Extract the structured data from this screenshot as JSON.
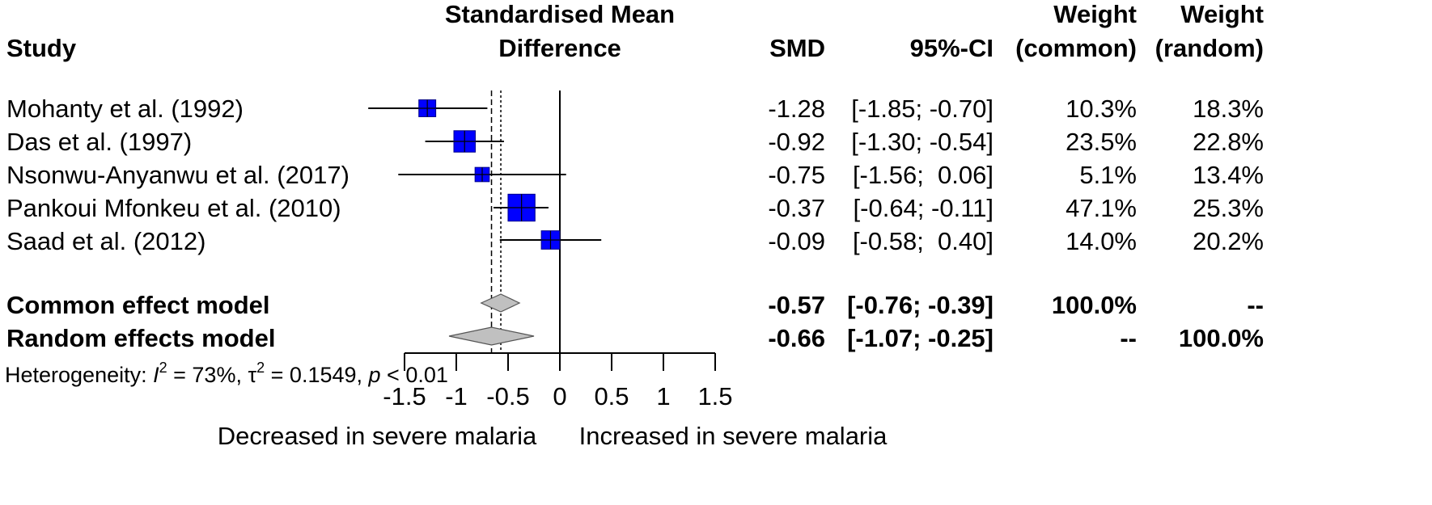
{
  "chart_data": {
    "type": "forest",
    "title": "Standardised Mean Difference",
    "headers": {
      "study": "Study",
      "effect_line1": "Standardised Mean",
      "effect_line2": "Difference",
      "smd": "SMD",
      "ci": "95%-CI",
      "w_common_line1": "Weight",
      "w_common_line2": "(common)",
      "w_random_line1": "Weight",
      "w_random_line2": "(random)"
    },
    "studies": [
      {
        "name": "Mohanty et al. (1992)",
        "smd": -1.28,
        "lower": -1.85,
        "upper": -0.7,
        "smd_text": "-1.28",
        "ci_text": "[-1.85; -0.70]",
        "w_common": 10.3,
        "w_common_text": "10.3%",
        "w_random_text": "18.3%"
      },
      {
        "name": "Das et al. (1997)",
        "smd": -0.92,
        "lower": -1.3,
        "upper": -0.54,
        "smd_text": "-0.92",
        "ci_text": "[-1.30; -0.54]",
        "w_common": 23.5,
        "w_common_text": "23.5%",
        "w_random_text": "22.8%"
      },
      {
        "name": "Nsonwu-Anyanwu et al. (2017)",
        "smd": -0.75,
        "lower": -1.56,
        "upper": 0.06,
        "smd_text": "-0.75",
        "ci_text": "[-1.56;  0.06]",
        "w_common": 5.1,
        "w_common_text": "5.1%",
        "w_random_text": "13.4%"
      },
      {
        "name": "Pankoui Mfonkeu et al. (2010)",
        "smd": -0.37,
        "lower": -0.64,
        "upper": -0.11,
        "smd_text": "-0.37",
        "ci_text": "[-0.64; -0.11]",
        "w_common": 47.1,
        "w_common_text": "47.1%",
        "w_random_text": "25.3%"
      },
      {
        "name": "Saad et al. (2012)",
        "smd": -0.09,
        "lower": -0.58,
        "upper": 0.4,
        "smd_text": "-0.09",
        "ci_text": "[-0.58;  0.40]",
        "w_common": 14.0,
        "w_common_text": "14.0%",
        "w_random_text": "20.2%"
      }
    ],
    "summaries": [
      {
        "name": "Common effect model",
        "smd": -0.57,
        "lower": -0.76,
        "upper": -0.39,
        "smd_text": "-0.57",
        "ci_text": "[-0.76; -0.39]",
        "w_common_text": "100.0%",
        "w_random_text": "--"
      },
      {
        "name": "Random effects model",
        "smd": -0.66,
        "lower": -1.07,
        "upper": -0.25,
        "smd_text": "-0.66",
        "ci_text": "[-1.07; -0.25]",
        "w_common_text": "--",
        "w_random_text": "100.0%"
      }
    ],
    "heterogeneity": {
      "prefix": "Heterogeneity: ",
      "i": "I",
      "two_a": "2",
      "i2_value": " = 73%, ",
      "tau": "τ",
      "two_b": "2",
      "tau2_value": " = 0.1549, ",
      "p": "p",
      "p_value": " < 0.01"
    },
    "x_axis": {
      "range": [
        -1.5,
        1.5
      ],
      "ticks": [
        -1.5,
        -1,
        -0.5,
        0,
        0.5,
        1,
        1.5
      ],
      "tick_labels": [
        "-1.5",
        "-1",
        "-0.5",
        "0",
        "0.5",
        "1",
        "1.5"
      ],
      "label_left": "Decreased in severe malaria",
      "label_right": "Increased in severe malaria"
    },
    "reference_line": 0,
    "colors": {
      "study_square": "#0000ff",
      "summary_diamond": "#c0c0c0",
      "line": "#000000"
    }
  }
}
